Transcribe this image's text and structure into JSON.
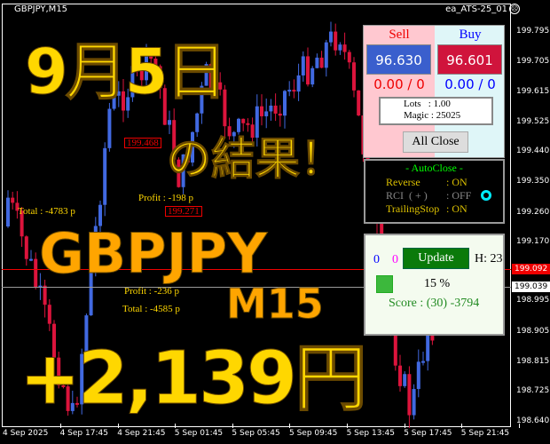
{
  "window": {
    "symbol_period": "GBPJPY,M15",
    "ea_name": "ea_ATS-25_01",
    "ea_status_icon": "sad-face-icon"
  },
  "price_axis": [
    "199.795",
    "199.705",
    "199.615",
    "199.525",
    "199.440",
    "199.350",
    "199.260",
    "199.170",
    "198.995",
    "198.905",
    "198.815",
    "198.725",
    "198.640"
  ],
  "price_tags": {
    "bid": "199.092",
    "current": "199.039"
  },
  "time_axis": [
    "4 Sep 2025",
    "4 Sep 17:45",
    "4 Sep 21:45",
    "5 Sep 01:45",
    "5 Sep 05:45",
    "5 Sep 09:45",
    "5 Sep 13:45",
    "5 Sep 17:45",
    "5 Sep 21:45"
  ],
  "chart_labels": {
    "profit1": "Profit : -198 p",
    "price_box1": "199.271",
    "price_box2": "199.468",
    "total1": "Total : -4783 p",
    "profit2": "Profit : -236 p",
    "total2": "Total : -4585 p"
  },
  "overlay": {
    "date": "9月5日",
    "result": "の結果！",
    "pair": "GBPJPY",
    "timeframe": "M15",
    "amount": "+2,139円"
  },
  "trade_panel": {
    "sell_label": "Sell",
    "buy_label": "Buy",
    "sell_price": "96.630",
    "buy_price": "96.601",
    "sell_pl": "0.00 / 0",
    "buy_pl": "0.00 / 0",
    "lots": "Lots   : 1.00",
    "magic": "Magic : 25025",
    "all_close": "All Close"
  },
  "autoclose": {
    "title": "- AutoClose -",
    "rows": [
      {
        "label": "Reverse",
        "value": ": ON"
      },
      {
        "label": "RCI  ( + )",
        "value": ": OFF"
      },
      {
        "label": "TrailingStop",
        "value": ": ON"
      }
    ]
  },
  "status_panel": {
    "count_blue": "0",
    "count_magenta": "0",
    "update": "Update",
    "hours": "H: 23",
    "percent": "15 %",
    "score": "Score : (30) -3794"
  },
  "colors": {
    "sell": "#3a5fcd",
    "buy": "#d0143c",
    "bull": "#4169e1",
    "bear": "#dc143c",
    "overlay_yellow": "#ffd700",
    "overlay_orange": "#ffa500"
  }
}
